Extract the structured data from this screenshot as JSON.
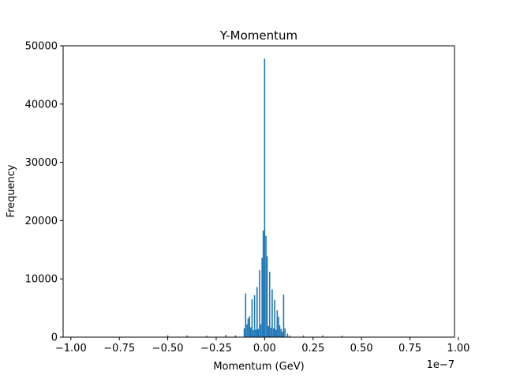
{
  "chart_data": {
    "type": "bar",
    "title": "Y-Momentum",
    "xlabel": "Momentum (GeV)",
    "ylabel": "Frequency",
    "x_offset_label": "1e−7",
    "xlim": [
      -1.04,
      0.98
    ],
    "ylim": [
      0,
      50000
    ],
    "grid": false,
    "x_ticks": [
      -1.0,
      -0.75,
      -0.5,
      -0.25,
      0.0,
      0.25,
      0.5,
      0.75,
      1.0
    ],
    "x_tick_labels": [
      "−1.00",
      "−0.75",
      "−0.50",
      "−0.25",
      "0.00",
      "0.25",
      "0.50",
      "0.75",
      "1.00"
    ],
    "y_ticks": [
      0,
      10000,
      20000,
      30000,
      40000,
      50000
    ],
    "y_tick_labels": [
      "0",
      "10000",
      "20000",
      "30000",
      "40000",
      "50000"
    ],
    "bin_width": 0.0065,
    "bins": [
      {
        "x": -0.5,
        "count": 300
      },
      {
        "x": -0.4,
        "count": 300
      },
      {
        "x": -0.3,
        "count": 250
      },
      {
        "x": -0.2,
        "count": 400
      },
      {
        "x": -0.15,
        "count": 300
      },
      {
        "x": -0.105,
        "count": 1500
      },
      {
        "x": -0.098,
        "count": 7500
      },
      {
        "x": -0.091,
        "count": 2200
      },
      {
        "x": -0.085,
        "count": 3200
      },
      {
        "x": -0.078,
        "count": 3600
      },
      {
        "x": -0.072,
        "count": 1700
      },
      {
        "x": -0.065,
        "count": 6500
      },
      {
        "x": -0.059,
        "count": 1200
      },
      {
        "x": -0.052,
        "count": 7200
      },
      {
        "x": -0.046,
        "count": 1300
      },
      {
        "x": -0.039,
        "count": 8600
      },
      {
        "x": -0.033,
        "count": 1400
      },
      {
        "x": -0.026,
        "count": 11500
      },
      {
        "x": -0.02,
        "count": 2200
      },
      {
        "x": -0.013,
        "count": 13600
      },
      {
        "x": -0.007,
        "count": 18300
      },
      {
        "x": 0.0,
        "count": 47800
      },
      {
        "x": 0.007,
        "count": 17400
      },
      {
        "x": 0.013,
        "count": 13900
      },
      {
        "x": 0.02,
        "count": 1900
      },
      {
        "x": 0.026,
        "count": 11200
      },
      {
        "x": 0.033,
        "count": 1600
      },
      {
        "x": 0.039,
        "count": 8200
      },
      {
        "x": 0.046,
        "count": 1500
      },
      {
        "x": 0.052,
        "count": 6400
      },
      {
        "x": 0.059,
        "count": 1300
      },
      {
        "x": 0.065,
        "count": 4600
      },
      {
        "x": 0.072,
        "count": 3500
      },
      {
        "x": 0.078,
        "count": 2000
      },
      {
        "x": 0.085,
        "count": 1400
      },
      {
        "x": 0.091,
        "count": 900
      },
      {
        "x": 0.098,
        "count": 7300
      },
      {
        "x": 0.105,
        "count": 1500
      },
      {
        "x": 0.118,
        "count": 600
      },
      {
        "x": 0.13,
        "count": 300
      },
      {
        "x": 0.2,
        "count": 300
      },
      {
        "x": 0.3,
        "count": 300
      },
      {
        "x": 0.4,
        "count": 250
      }
    ]
  }
}
